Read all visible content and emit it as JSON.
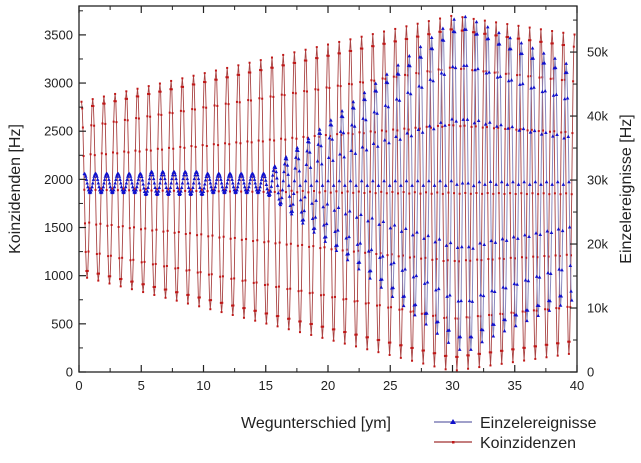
{
  "chart_data": {
    "type": "line",
    "xlabel": "Wegunterschied [ym]",
    "ylabel_left": "Koinzidenden [Hz]",
    "ylabel_right": "Einzelereignisse [Hz]",
    "xlim": [
      0,
      40
    ],
    "ylim_left": [
      0,
      3800
    ],
    "ylim_right": [
      0,
      57200
    ],
    "x_ticks": [
      0,
      5,
      10,
      15,
      20,
      25,
      30,
      35,
      40
    ],
    "x_tick_labels": [
      "0",
      "5",
      "10",
      "15",
      "20",
      "25",
      "30",
      "35",
      "40"
    ],
    "y_left_ticks": [
      0,
      500,
      1000,
      1500,
      2000,
      2500,
      3000,
      3500
    ],
    "y_left_tick_labels": [
      "0",
      "500",
      "1000",
      "1500",
      "2000",
      "2500",
      "3000",
      "3500"
    ],
    "y_right_ticks": [
      0,
      10000,
      20000,
      30000,
      40000,
      50000
    ],
    "y_right_tick_labels": [
      "0",
      "10k",
      "20k",
      "30k",
      "40k",
      "50k"
    ],
    "grid": false,
    "legend_placement": "bottom-right, outside plot",
    "series": [
      {
        "name": "Einzelereignisse",
        "axis": "right",
        "color": "#1010cc",
        "line_color": "#8080b8",
        "marker": "triangle",
        "extrema_x": [
          0.43,
          0.88,
          1.33,
          1.78,
          2.23,
          2.68,
          3.13,
          3.58,
          4.03,
          4.48,
          4.93,
          5.38,
          5.83,
          6.28,
          6.73,
          7.18,
          7.63,
          8.08,
          8.53,
          8.98,
          9.43,
          9.88,
          10.33,
          10.78,
          11.23,
          11.68,
          12.13,
          12.58,
          13.03,
          13.48,
          13.93,
          14.38,
          14.83,
          15.28,
          15.73,
          16.18,
          16.63,
          17.08,
          17.53,
          17.98,
          18.43,
          18.88,
          19.33,
          19.78,
          20.23,
          20.68,
          21.13,
          21.58,
          22.03,
          22.48,
          22.93,
          23.38,
          23.83,
          24.28,
          24.73,
          25.18,
          25.63,
          26.08,
          26.53,
          26.98,
          27.43,
          27.88,
          28.33,
          28.78,
          29.23,
          29.68,
          30.13,
          30.58,
          31.03,
          31.48,
          31.93,
          32.38,
          32.83,
          33.28,
          33.73,
          34.18,
          34.63,
          35.08,
          35.53,
          35.98,
          36.43,
          36.88,
          37.33,
          37.78,
          38.23,
          38.68,
          39.13,
          39.58
        ],
        "extrema_y": [
          31000,
          28000,
          31000,
          28000,
          31000,
          28000,
          31000,
          28000,
          31000,
          28000,
          31000,
          27700,
          31300,
          27700,
          31300,
          27700,
          31300,
          27700,
          31300,
          27700,
          31300,
          27700,
          31000,
          28000,
          31000,
          28000,
          31000,
          28000,
          31000,
          28000,
          31000,
          28000,
          31000,
          27550,
          32160,
          26120,
          33600,
          24680,
          35030,
          23250,
          36470,
          21820,
          37900,
          20380,
          39340,
          18950,
          40770,
          17510,
          42210,
          16080,
          43640,
          14640,
          45080,
          13210,
          46510,
          11770,
          47940,
          10340,
          49380,
          8900,
          50810,
          7470,
          52250,
          6030,
          53680,
          4600,
          55100,
          3500,
          55500,
          3500,
          54700,
          4700,
          53900,
          5600,
          53000,
          6400,
          52200,
          7200,
          51400,
          8000,
          50600,
          8800,
          49800,
          9600,
          49000,
          10400,
          48200,
          11200
        ]
      },
      {
        "name": "Koinzidenzen",
        "axis": "left",
        "color": "#c01818",
        "line_color": "#a03030",
        "marker": "square",
        "extrema_x": [
          0.2,
          0.65,
          1.1,
          1.55,
          2.0,
          2.45,
          2.9,
          3.35,
          3.8,
          4.25,
          4.7,
          5.15,
          5.6,
          6.05,
          6.5,
          6.95,
          7.4,
          7.85,
          8.3,
          8.75,
          9.2,
          9.65,
          10.1,
          10.55,
          11.0,
          11.45,
          11.9,
          12.35,
          12.8,
          13.25,
          13.7,
          14.15,
          14.6,
          15.05,
          15.5,
          15.95,
          16.4,
          16.85,
          17.3,
          17.75,
          18.2,
          18.65,
          19.1,
          19.55,
          20.0,
          20.45,
          20.9,
          21.35,
          21.8,
          22.25,
          22.7,
          23.15,
          23.6,
          24.05,
          24.5,
          24.95,
          25.4,
          25.85,
          26.3,
          26.75,
          27.2,
          27.65,
          28.1,
          28.55,
          29.0,
          29.45,
          29.9,
          30.35,
          30.8,
          31.25,
          31.7,
          32.15,
          32.6,
          33.05,
          33.5,
          33.95,
          34.4,
          34.85,
          35.3,
          35.75,
          36.2,
          36.65,
          37.1,
          37.55,
          38.0,
          38.45,
          38.9,
          39.35,
          39.8
        ],
        "extrema_y": [
          2806,
          979,
          2833,
          949,
          2860,
          919,
          2887,
          889,
          2914,
          860,
          2941,
          830,
          2968,
          800,
          2995,
          771,
          3022,
          741,
          3049,
          711,
          3076,
          682,
          3103,
          652,
          3130,
          622,
          3157,
          592,
          3184,
          563,
          3211,
          533,
          3238,
          503,
          3265,
          474,
          3292,
          444,
          3319,
          414,
          3346,
          385,
          3373,
          355,
          3400,
          325,
          3427,
          295,
          3454,
          266,
          3481,
          236,
          3508,
          206,
          3535,
          177,
          3562,
          147,
          3589,
          117,
          3616,
          88,
          3643,
          58,
          3670,
          28,
          3697,
          17,
          3684,
          34,
          3666,
          51,
          3648,
          68,
          3630,
          85,
          3612,
          102,
          3594,
          119,
          3576,
          136,
          3558,
          153,
          3540,
          170,
          3522,
          188,
          3504
        ]
      }
    ]
  }
}
